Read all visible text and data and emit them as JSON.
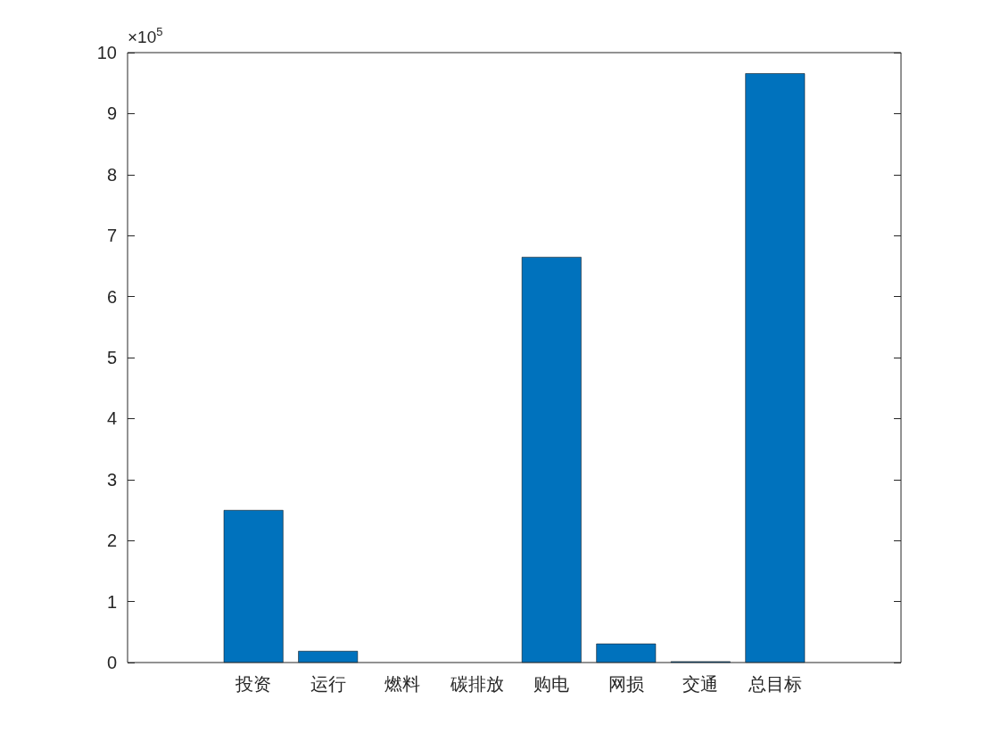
{
  "chart_data": {
    "type": "bar",
    "categories": [
      "投资",
      "运行",
      "燃料",
      "碳排放",
      "购电",
      "网损",
      "交通",
      "总目标"
    ],
    "values": [
      2.5,
      0.19,
      0,
      0,
      6.65,
      0.31,
      0.02,
      9.66
    ],
    "color": "#0072bd",
    "ylim": [
      0,
      10
    ],
    "yticks": [
      0,
      1,
      2,
      3,
      4,
      5,
      6,
      7,
      8,
      9,
      10
    ],
    "annotations": [
      "×10$^{5}$"
    ],
    "grid": false
  }
}
